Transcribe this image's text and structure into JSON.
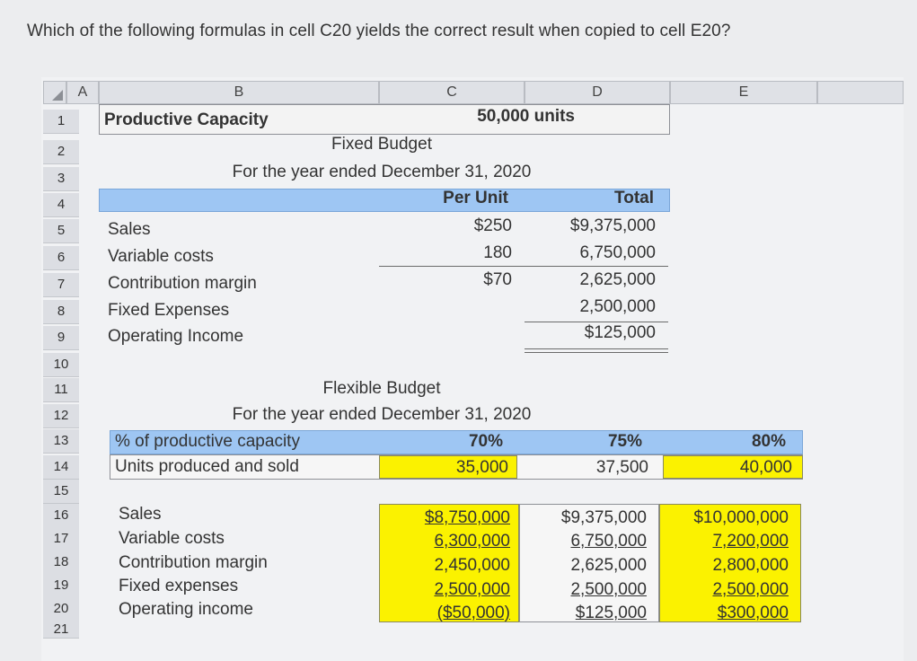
{
  "question": "Which of the following formulas in cell C20 yields the correct result when copied to cell E20?",
  "columns": [
    "A",
    "B",
    "C",
    "D",
    "E"
  ],
  "rows": [
    "1",
    "2",
    "3",
    "4",
    "5",
    "6",
    "7",
    "8",
    "9",
    "10",
    "11",
    "12",
    "13",
    "14",
    "15",
    "16",
    "17",
    "18",
    "19",
    "20",
    "21"
  ],
  "capacity": {
    "label": "Productive Capacity",
    "value": "50,000 units"
  },
  "fixed": {
    "title": "Fixed Budget",
    "subtitle": "For the year ended December 31, 2020",
    "hdr_per_unit": "Per Unit",
    "hdr_total": "Total",
    "rows": [
      {
        "label": "Sales",
        "per_unit": "$250",
        "total": "$9,375,000"
      },
      {
        "label": "Variable costs",
        "per_unit": "180",
        "total": "6,750,000"
      },
      {
        "label": "Contribution margin",
        "per_unit": "$70",
        "total": "2,625,000"
      },
      {
        "label": "Fixed Expenses",
        "per_unit": "",
        "total": "2,500,000"
      },
      {
        "label": "Operating Income",
        "per_unit": "",
        "total": "$125,000"
      }
    ]
  },
  "flex": {
    "title": "Flexible Budget",
    "subtitle": "For the year ended December 31, 2020",
    "capacity_label": "% of productive capacity",
    "capacity": [
      "70%",
      "75%",
      "80%"
    ],
    "units_label": "Units produced and sold",
    "units": [
      "35,000",
      "37,500",
      "40,000"
    ],
    "rows": [
      {
        "label": "Sales",
        "vals": [
          "$8,750,000",
          "$9,375,000",
          "$10,000,000"
        ]
      },
      {
        "label": "Variable costs",
        "vals": [
          "6,300,000",
          "6,750,000",
          "7,200,000"
        ]
      },
      {
        "label": "Contribution margin",
        "vals": [
          "2,450,000",
          "2,625,000",
          "2,800,000"
        ]
      },
      {
        "label": "Fixed expenses",
        "vals": [
          "2,500,000",
          "2,500,000",
          "2,500,000"
        ]
      },
      {
        "label": "Operating income",
        "vals": [
          "($50,000)",
          "$125,000",
          "$300,000"
        ]
      }
    ]
  }
}
